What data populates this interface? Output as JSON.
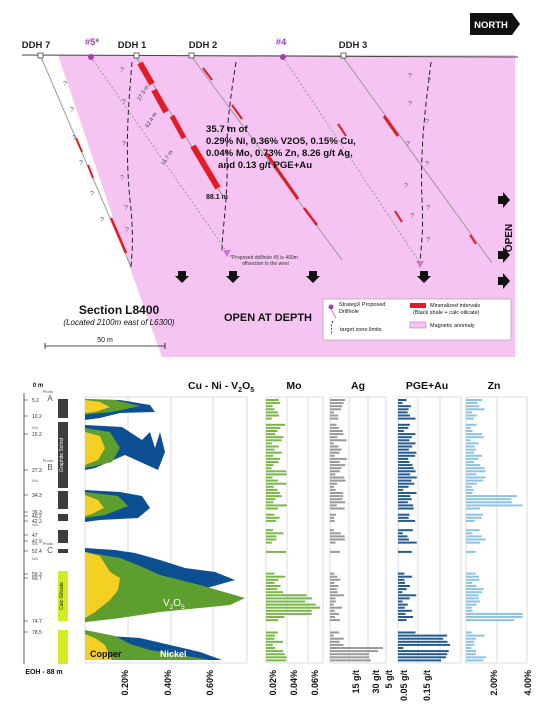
{
  "section": {
    "north_label": "NORTH",
    "holes": [
      {
        "label": "DDH 7",
        "style": "dark"
      },
      {
        "label": "#5*",
        "style": "purple"
      },
      {
        "label": "DDH 1",
        "style": "dark"
      },
      {
        "label": "DDH 2",
        "style": "dark"
      },
      {
        "label": "#4",
        "style": "purple"
      },
      {
        "label": "DDH 3",
        "style": "dark"
      }
    ],
    "intercept_lines": [
      "35.7 m of",
      "0.29% Ni, 0.36% V2O5, 0.15% Cu,",
      "0.04% Mo, 0.73% Zn, 8.26 g/t Ag,",
      "and 0.13 g/t PGE+Au"
    ],
    "depth_labels": [
      "27.3 m",
      "52.4 m",
      "74.7 m",
      "88.1 m"
    ],
    "footnote_lines": [
      "*Proposed drillhole #5 is 400m",
      "offsection to the west"
    ],
    "open_label": "OPEN",
    "open_at_depth_label": "OPEN AT DEPTH",
    "section_title": "Section",
    "section_id": "L8400",
    "section_subtitle": "(Located 2100m east of L6300)",
    "scale_label": "50 m",
    "legend": [
      {
        "label": "StrategX Proposed Drillhole",
        "symbol": "proposed-hole"
      },
      {
        "label": "target zone limits",
        "symbol": "dashed-line"
      },
      {
        "label": "Mineralized intervals (Black shale + calc-silicate)",
        "symbol": "red-bar"
      },
      {
        "label": "Magnetic anomaly",
        "symbol": "pink-box"
      }
    ],
    "colors": {
      "anomaly": "#f6c4f2",
      "mineralized": "#e31b23",
      "proposed": "#a23fb5",
      "hole_line": "#999999"
    }
  },
  "log": {
    "depth_top": "0 m",
    "depth_marks": [
      "5.2",
      "10.2",
      "15.2",
      "27.3",
      "34.3",
      "39.3",
      "40.2",
      "42.2",
      "47",
      "47.9",
      "52.4",
      "59.3",
      "60.7",
      "74.7",
      "78.5"
    ],
    "na_marks": [
      "N/A",
      "N/A",
      "N/A",
      "N/A",
      "N/A"
    ],
    "photo_labels": [
      {
        "label": "Photo",
        "letter": "A"
      },
      {
        "label": "Photo",
        "letter": "B"
      },
      {
        "label": "Photo",
        "letter": "C"
      }
    ],
    "lithology_labels": [
      "Graphite Schist",
      "Calc-Silicate"
    ],
    "eoh_label": "EOH - 88 m",
    "panel_titles": {
      "cu_ni_v": "Cu - Ni - V",
      "v_sub": "2",
      "o_text": "O",
      "o_sub": "5",
      "mo": "Mo",
      "ag": "Ag",
      "pge": "PGE+Au",
      "zn": "Zn"
    },
    "inner_labels": {
      "v2o5_main": "V",
      "v2o5_sub1": "2",
      "v2o5_o": "O",
      "v2o5_sub2": "5",
      "copper": "Copper",
      "nickel": "Nickel"
    },
    "axis_labels": {
      "cu_ni_v": [
        "0.20%",
        "0.40%",
        "0.60%"
      ],
      "mo": [
        "0.02%",
        "0.04%",
        "0.06%"
      ],
      "ag": [
        "15 g/t",
        "30 g/t",
        "5 g/t"
      ],
      "pge": [
        "0.05 g/t",
        "0.15 g/t"
      ],
      "zn": [
        "2.00%",
        "4.00%"
      ]
    },
    "colors": {
      "copper": "#f5d024",
      "nickel": "#5e9e2e",
      "v2o5": "#0d4f93",
      "mo": "#7ab648",
      "ag": "#9a9a9a",
      "pge": "#245b8f",
      "zn": "#8ec3e3",
      "calc_silicate": "#d4ec22",
      "graphite": "#3d3d3d"
    }
  }
}
